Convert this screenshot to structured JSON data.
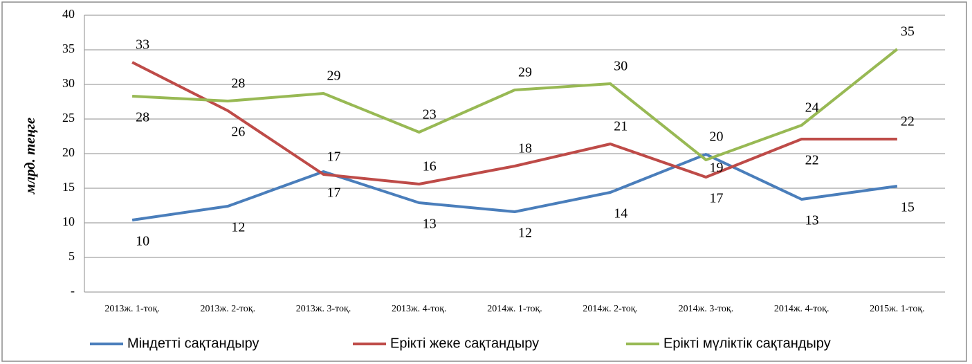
{
  "chart_data": {
    "type": "line",
    "y_label": "млрд. теңге",
    "categories": [
      "2013ж. 1-тоқ.",
      "2013ж. 2-тоқ.",
      "2013ж. 3-тоқ.",
      "2013ж. 4-тоқ.",
      "2014ж. 1-тоқ.",
      "2014ж. 2-тоқ.",
      "2014ж. 3-тоқ.",
      "2014ж. 4-тоқ.",
      "2015ж. 1-тоқ."
    ],
    "series": [
      {
        "name": "Міндетті сақтандыру",
        "color": "#4a7ebb",
        "values": [
          10.4,
          12.4,
          17.4,
          12.9,
          11.6,
          14.4,
          19.9,
          13.4,
          15.3
        ],
        "value_labels": [
          "10",
          "12",
          "17",
          "13",
          "12",
          "14",
          "20",
          "13",
          "15"
        ]
      },
      {
        "name": "Ерікті жеке сақтандыру",
        "color": "#be4b48",
        "values": [
          33.2,
          26.2,
          17.0,
          15.6,
          18.2,
          21.4,
          16.6,
          22.1,
          22.1
        ],
        "value_labels": [
          "33",
          "26",
          "17",
          "16",
          "18",
          "21",
          "17",
          "22",
          "22"
        ]
      },
      {
        "name": "Ерікті мүліктік сақтандыру",
        "color": "#98b954",
        "values": [
          28.3,
          27.6,
          28.7,
          23.1,
          29.2,
          30.1,
          19.1,
          24.1,
          35.1
        ],
        "value_labels": [
          "28",
          "28",
          "29",
          "23",
          "29",
          "30",
          "19",
          "24",
          "35"
        ]
      }
    ],
    "ylim": [
      0,
      40
    ],
    "yticks": [
      {
        "value": 0,
        "label": "-"
      },
      5,
      10,
      15,
      20,
      25,
      30,
      35,
      40
    ],
    "grid": true,
    "legend": "bottom"
  }
}
